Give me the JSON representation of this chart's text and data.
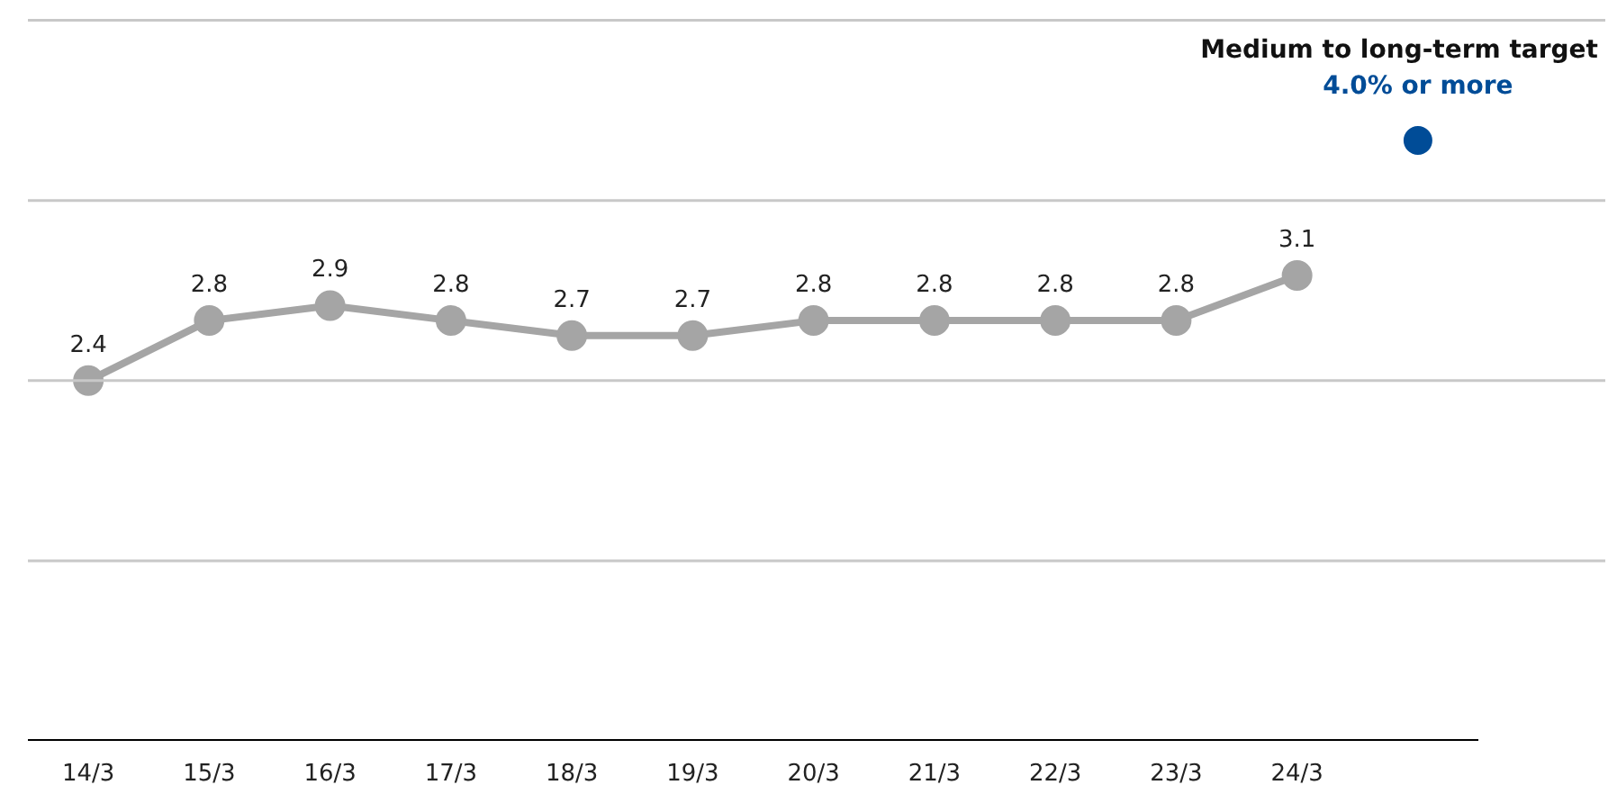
{
  "chart_data": {
    "type": "line",
    "categories": [
      "14/3",
      "15/3",
      "16/3",
      "17/3",
      "18/3",
      "19/3",
      "20/3",
      "21/3",
      "22/3",
      "23/3",
      "24/3",
      null
    ],
    "series": [
      {
        "color": "#a5a5a5",
        "values": [
          2.4,
          2.8,
          2.9,
          2.8,
          2.7,
          2.7,
          2.8,
          2.8,
          2.8,
          2.8,
          3.1,
          null
        ],
        "value_labels": [
          "2.4",
          "2.8",
          "2.9",
          "2.8",
          "2.7",
          "2.7",
          "2.8",
          "2.8",
          "2.8",
          "2.8",
          "3.1",
          null
        ]
      },
      {
        "type": "scatter",
        "name": "Medium to long-term target",
        "color": "#004c97",
        "values": [
          null,
          null,
          null,
          null,
          null,
          null,
          null,
          null,
          null,
          null,
          null,
          4.0
        ],
        "value_labels": [
          null,
          null,
          null,
          null,
          null,
          null,
          null,
          null,
          null,
          null,
          null,
          "4.0% or more"
        ]
      }
    ],
    "ref_lines": [
      {
        "axis": "y",
        "value": 1.2,
        "color": "#c8c8c8"
      },
      {
        "axis": "y",
        "value": 2.4,
        "color": "#c8c8c8"
      },
      {
        "axis": "y",
        "value": 3.6,
        "color": "#c8c8c8"
      },
      {
        "axis": "y",
        "value": 4.8,
        "color": "#c8c8c8"
      }
    ],
    "tick_labels": "x",
    "marker": "circle",
    "line_style": "solid"
  }
}
